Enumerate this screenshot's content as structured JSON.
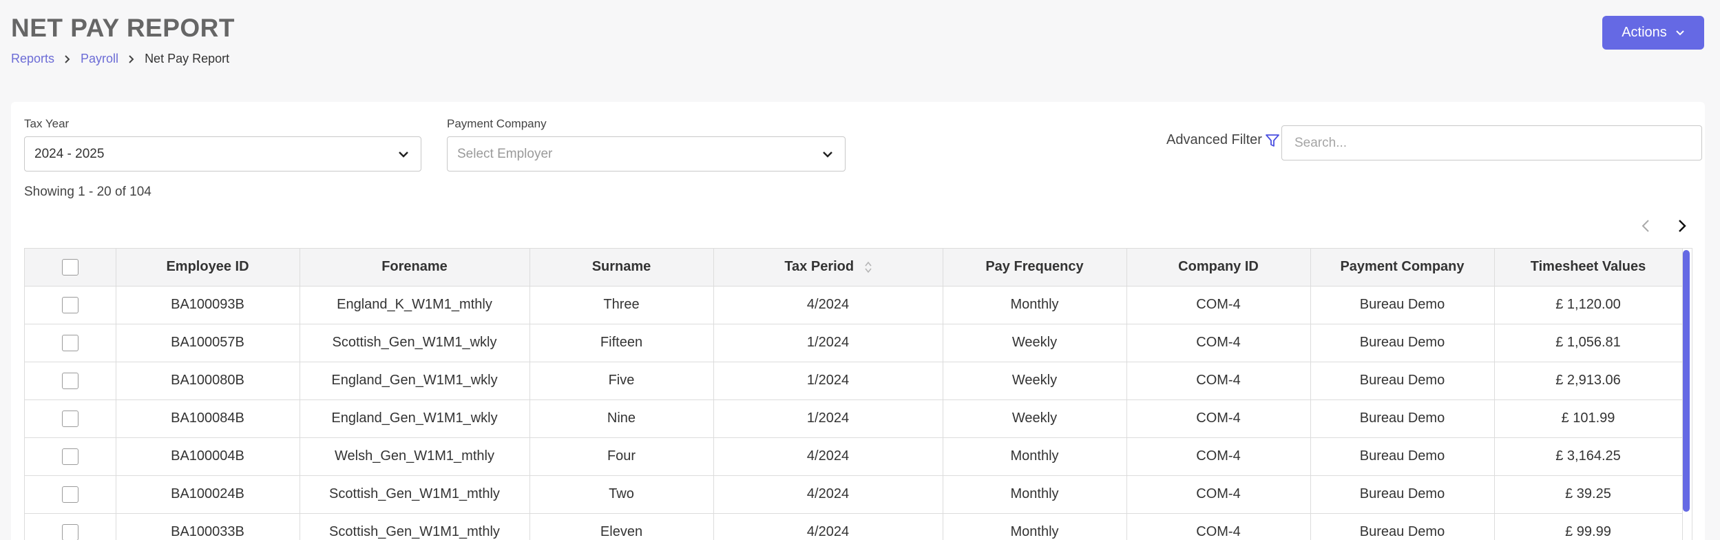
{
  "header": {
    "title": "NET PAY REPORT",
    "breadcrumb": [
      "Reports",
      "Payroll",
      "Net Pay Report"
    ],
    "actions_label": "Actions"
  },
  "filters": {
    "tax_year_label": "Tax Year",
    "tax_year_value": "2024 - 2025",
    "payment_company_label": "Payment Company",
    "payment_company_placeholder": "Select Employer",
    "advanced_filter_label": "Advanced Filter",
    "search_placeholder": "Search..."
  },
  "showing": "Showing 1 - 20 of 104",
  "colors": {
    "accent": "#6569e4",
    "link": "#6c6cd6"
  },
  "table": {
    "columns": [
      "Employee ID",
      "Forename",
      "Surname",
      "Tax Period",
      "Pay Frequency",
      "Company ID",
      "Payment Company",
      "Timesheet Values"
    ],
    "rows": [
      [
        "BA100093B",
        "England_K_W1M1_mthly",
        "Three",
        "4/2024",
        "Monthly",
        "COM-4",
        "Bureau Demo",
        "£ 1,120.00"
      ],
      [
        "BA100057B",
        "Scottish_Gen_W1M1_wkly",
        "Fifteen",
        "1/2024",
        "Weekly",
        "COM-4",
        "Bureau Demo",
        "£ 1,056.81"
      ],
      [
        "BA100080B",
        "England_Gen_W1M1_wkly",
        "Five",
        "1/2024",
        "Weekly",
        "COM-4",
        "Bureau Demo",
        "£ 2,913.06"
      ],
      [
        "BA100084B",
        "England_Gen_W1M1_wkly",
        "Nine",
        "1/2024",
        "Weekly",
        "COM-4",
        "Bureau Demo",
        "£ 101.99"
      ],
      [
        "BA100004B",
        "Welsh_Gen_W1M1_mthly",
        "Four",
        "4/2024",
        "Monthly",
        "COM-4",
        "Bureau Demo",
        "£ 3,164.25"
      ],
      [
        "BA100024B",
        "Scottish_Gen_W1M1_mthly",
        "Two",
        "4/2024",
        "Monthly",
        "COM-4",
        "Bureau Demo",
        "£ 39.25"
      ],
      [
        "BA100033B",
        "Scottish_Gen_W1M1_mthly",
        "Eleven",
        "4/2024",
        "Monthly",
        "COM-4",
        "Bureau Demo",
        "£ 99.99"
      ]
    ]
  }
}
